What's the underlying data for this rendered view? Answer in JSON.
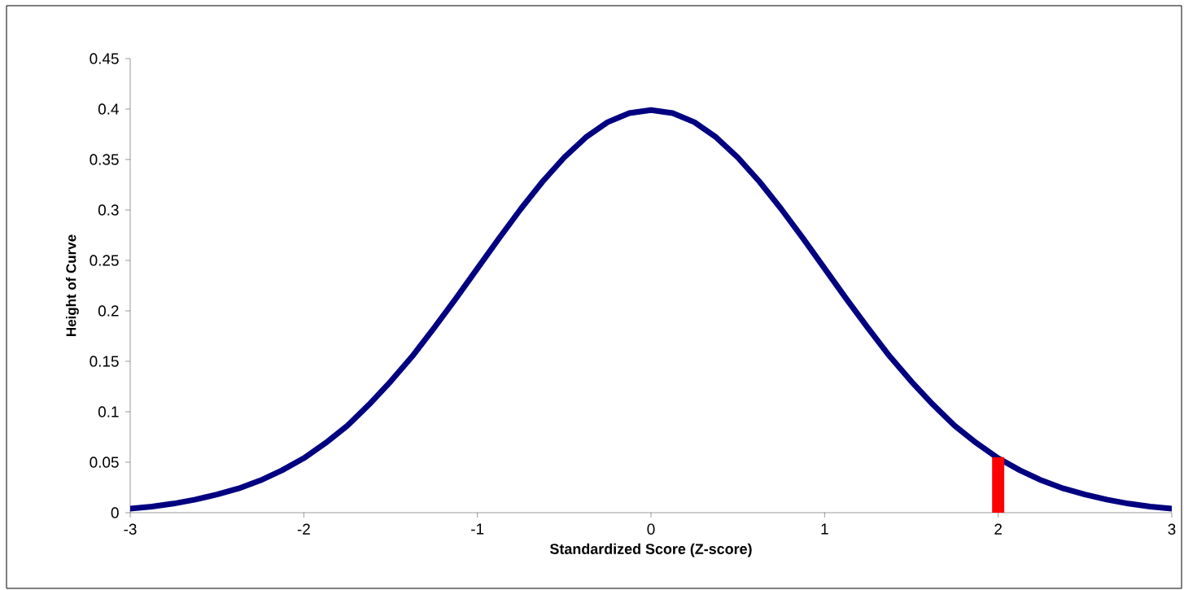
{
  "chart_data": {
    "type": "line",
    "xlabel": "Standardized Score (Z-score)",
    "ylabel": "Height of Curve",
    "xlim": [
      -3,
      3
    ],
    "xticks": [
      -3,
      -2,
      -1,
      0,
      1,
      2,
      3
    ],
    "ylim": [
      0,
      0.45
    ],
    "yticks": [
      0,
      0.05,
      0.1,
      0.15,
      0.2,
      0.25,
      0.3,
      0.35,
      0.4,
      0.45
    ],
    "grid": false,
    "series": [
      {
        "color": "#000080",
        "x": [
          -3,
          -2.875,
          -2.75,
          -2.625,
          -2.5,
          -2.375,
          -2.25,
          -2.125,
          -2,
          -1.875,
          -1.75,
          -1.625,
          -1.5,
          -1.375,
          -1.25,
          -1.125,
          -1,
          -0.875,
          -0.75,
          -0.625,
          -0.5,
          -0.375,
          -0.25,
          -0.125,
          0,
          0.125,
          0.25,
          0.375,
          0.5,
          0.625,
          0.75,
          0.875,
          1,
          1.125,
          1.25,
          1.375,
          1.5,
          1.625,
          1.75,
          1.875,
          2,
          2.125,
          2.25,
          2.375,
          2.5,
          2.625,
          2.75,
          2.875,
          3
        ],
        "values": [
          0.004,
          0.006,
          0.009,
          0.013,
          0.018,
          0.024,
          0.032,
          0.042,
          0.054,
          0.069,
          0.086,
          0.107,
          0.13,
          0.155,
          0.183,
          0.212,
          0.242,
          0.272,
          0.301,
          0.328,
          0.352,
          0.372,
          0.387,
          0.396,
          0.399,
          0.396,
          0.387,
          0.372,
          0.352,
          0.328,
          0.301,
          0.272,
          0.242,
          0.212,
          0.183,
          0.155,
          0.13,
          0.107,
          0.086,
          0.069,
          0.054,
          0.042,
          0.032,
          0.024,
          0.018,
          0.013,
          0.009,
          0.006,
          0.004
        ]
      },
      {
        "type": "bar",
        "color": "#ff0000",
        "x": [
          2
        ],
        "values": [
          0.055
        ]
      }
    ]
  }
}
